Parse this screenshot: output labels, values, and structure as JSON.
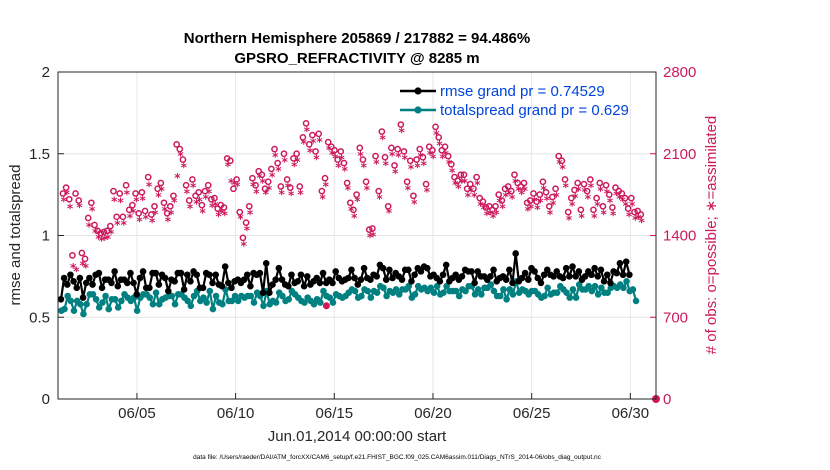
{
  "figure": {
    "title_line1": "Northern Hemisphere 205869 / 217882 = 94.486%",
    "title_line2": "GPSRO_REFRACTIVITY @ 8285 m",
    "footer_text": "data file: /Users/raeder/DAI/ATM_forcXX/CAM6_setup/f.e21.FHIST_BGC.f09_025.CAM6assim.011/Diags_NTrS_2014-06/obs_diag_output.nc"
  },
  "chart_data": {
    "type": "line",
    "title": "Northern Hemisphere 205869 / 217882 = 94.486%",
    "subtitle": "GPSRO_REFRACTIVITY @ 8285 m",
    "xlabel": "Jun.01,2014 00:00:00 start",
    "ylabel": "rmse and totalspread",
    "y2label": "# of obs: o=possible; ∗=assimilated",
    "xlim": [
      1,
      31.3
    ],
    "ylim": [
      0,
      2
    ],
    "y2lim": [
      0,
      2800
    ],
    "x_ticks": [
      5,
      10,
      15,
      20,
      25,
      30
    ],
    "x_tick_labels": [
      "06/05",
      "06/10",
      "06/15",
      "06/20",
      "06/25",
      "06/30"
    ],
    "y_ticks": [
      0,
      0.5,
      1,
      1.5,
      2
    ],
    "y_tick_labels": [
      "0",
      "0.5",
      "1",
      "1.5",
      "2"
    ],
    "y2_ticks": [
      0,
      700,
      1400,
      2100,
      2800
    ],
    "y2_tick_labels": [
      "0",
      "700",
      "1400",
      "2100",
      "2800"
    ],
    "grid": true,
    "legend_position": "top-right",
    "colors": {
      "rmse": "#000000",
      "spread": "#008080",
      "obs": "#cc1a5c",
      "legend_text": "#0044dd"
    },
    "series": [
      {
        "name": "rmse grand pr = 0.74529",
        "axis": "left",
        "values": [
          0.61,
          0.74,
          0.7,
          0.76,
          0.72,
          0.68,
          0.74,
          0.62,
          0.71,
          0.74,
          0.7,
          0.76,
          0.77,
          0.68,
          0.73,
          0.73,
          0.71,
          0.78,
          0.69,
          0.73,
          0.73,
          0.71,
          0.77,
          0.71,
          0.64,
          0.74,
          0.78,
          0.68,
          0.68,
          0.77,
          0.77,
          0.7,
          0.76,
          0.74,
          0.66,
          0.73,
          0.72,
          0.77,
          0.77,
          0.67,
          0.76,
          0.72,
          0.78,
          0.76,
          0.68,
          0.68,
          0.77,
          0.76,
          0.71,
          0.76,
          0.7,
          0.69,
          0.81,
          0.71,
          0.68,
          0.72,
          0.73,
          0.71,
          0.73,
          0.76,
          0.69,
          0.77,
          0.76,
          0.77,
          0.65,
          0.83,
          0.65,
          0.7,
          0.73,
          0.8,
          0.73,
          0.7,
          0.69,
          0.76,
          0.71,
          0.72,
          0.76,
          0.69,
          0.75,
          0.7,
          0.72,
          0.74,
          0.71,
          0.77,
          0.71,
          0.73,
          0.71,
          0.78,
          0.74,
          0.72,
          0.73,
          0.74,
          0.79,
          0.74,
          0.7,
          0.73,
          0.8,
          0.74,
          0.73,
          0.76,
          0.75,
          0.82,
          0.8,
          0.73,
          0.79,
          0.74,
          0.77,
          0.75,
          0.73,
          0.79,
          0.79,
          0.72,
          0.76,
          0.8,
          0.78,
          0.81,
          0.8,
          0.75,
          0.76,
          0.74,
          0.72,
          0.76,
          0.82,
          0.72,
          0.74,
          0.76,
          0.73,
          0.75,
          0.79,
          0.78,
          0.78,
          0.71,
          0.78,
          0.75,
          0.75,
          0.73,
          0.75,
          0.79,
          0.72,
          0.74,
          0.75,
          0.73,
          0.79,
          0.71,
          0.89,
          0.72,
          0.74,
          0.77,
          0.73,
          0.8,
          0.78,
          0.74,
          0.71,
          0.76,
          0.79,
          0.76,
          0.75,
          0.78,
          0.75,
          0.74,
          0.8,
          0.75,
          0.81,
          0.75,
          0.78,
          0.73,
          0.75,
          0.78,
          0.76,
          0.8,
          0.75,
          0.79,
          0.72,
          0.76,
          0.71,
          0.78,
          0.77,
          0.83,
          0.76,
          0.84,
          0.76
        ]
      },
      {
        "name": "totalspread grand pr = 0.629",
        "axis": "left",
        "values": [
          0.54,
          0.55,
          0.63,
          0.6,
          0.54,
          0.6,
          0.58,
          0.52,
          0.58,
          0.64,
          0.64,
          0.61,
          0.56,
          0.59,
          0.63,
          0.55,
          0.61,
          0.61,
          0.56,
          0.6,
          0.64,
          0.62,
          0.6,
          0.62,
          0.54,
          0.62,
          0.64,
          0.64,
          0.62,
          0.58,
          0.65,
          0.58,
          0.61,
          0.62,
          0.63,
          0.63,
          0.58,
          0.64,
          0.64,
          0.62,
          0.6,
          0.57,
          0.63,
          0.66,
          0.6,
          0.62,
          0.59,
          0.66,
          0.55,
          0.63,
          0.59,
          0.58,
          0.67,
          0.6,
          0.6,
          0.63,
          0.6,
          0.63,
          0.62,
          0.63,
          0.63,
          0.59,
          0.65,
          0.63,
          0.57,
          0.66,
          0.58,
          0.6,
          0.59,
          0.65,
          0.63,
          0.6,
          0.61,
          0.66,
          0.64,
          0.62,
          0.6,
          0.59,
          0.62,
          0.6,
          0.58,
          0.61,
          0.59,
          0.66,
          0.63,
          0.62,
          0.59,
          0.64,
          0.63,
          0.62,
          0.63,
          0.65,
          0.67,
          0.66,
          0.62,
          0.63,
          0.67,
          0.66,
          0.62,
          0.66,
          0.65,
          0.69,
          0.68,
          0.63,
          0.66,
          0.65,
          0.67,
          0.64,
          0.67,
          0.67,
          0.69,
          0.62,
          0.64,
          0.69,
          0.67,
          0.68,
          0.66,
          0.68,
          0.65,
          0.69,
          0.64,
          0.65,
          0.69,
          0.66,
          0.66,
          0.66,
          0.63,
          0.67,
          0.66,
          0.69,
          0.69,
          0.64,
          0.67,
          0.64,
          0.68,
          0.68,
          0.7,
          0.66,
          0.63,
          0.63,
          0.67,
          0.61,
          0.67,
          0.64,
          0.72,
          0.65,
          0.67,
          0.66,
          0.64,
          0.66,
          0.66,
          0.64,
          0.62,
          0.63,
          0.68,
          0.64,
          0.65,
          0.65,
          0.69,
          0.67,
          0.65,
          0.62,
          0.67,
          0.62,
          0.7,
          0.67,
          0.67,
          0.69,
          0.66,
          0.69,
          0.64,
          0.68,
          0.65,
          0.65,
          0.68,
          0.69,
          0.68,
          0.7,
          0.68,
          0.72,
          0.66,
          0.67,
          0.6
        ]
      },
      {
        "name": "possible obs (o)",
        "axis": "right",
        "values": [
          1760,
          1810,
          1710,
          1230,
          1760,
          1700,
          1250,
          1200,
          1550,
          1680,
          1490,
          1440,
          1420,
          1430,
          1440,
          1480,
          1780,
          1560,
          1760,
          1560,
          1830,
          1620,
          1660,
          1760,
          1590,
          1770,
          1610,
          1900,
          1580,
          1650,
          1800,
          1850,
          1680,
          1590,
          1650,
          1740,
          2180,
          2140,
          2050,
          1830,
          1700,
          1880,
          1740,
          1770,
          1660,
          1780,
          1830,
          1710,
          1720,
          1630,
          1660,
          1640,
          2060,
          2040,
          1800,
          1880,
          1600,
          1380,
          1510,
          1650,
          1890,
          1830,
          1950,
          1920,
          1800,
          1860,
          1970,
          2140,
          2020,
          1820,
          2100,
          1880,
          1810,
          2060,
          2100,
          1820,
          2240,
          2360,
          2180,
          2260,
          2120,
          2270,
          1780,
          1890,
          2200,
          2160,
          2130,
          2050,
          2120,
          2020,
          1850,
          1680,
          1620,
          1750,
          2150,
          2050,
          1860,
          1450,
          1460,
          2080,
          1780,
          2290,
          2070,
          1650,
          2150,
          2000,
          2140,
          2350,
          2120,
          1860,
          2040,
          1740,
          2050,
          2140,
          2070,
          1840,
          2160,
          2130,
          2330,
          2240,
          2130,
          2160,
          2080,
          2010,
          1900,
          1870,
          1920,
          1920,
          1800,
          1840,
          1800,
          1900,
          1720,
          1690,
          1640,
          1650,
          1620,
          1650,
          1750,
          1700,
          1800,
          1820,
          1780,
          1920,
          1850,
          1820,
          1850,
          1680,
          1700,
          1760,
          1690,
          1750,
          1860,
          1770,
          1650,
          1730,
          1800,
          2080,
          2040,
          1880,
          1600,
          1720,
          1790,
          1850,
          1620,
          1840,
          1780,
          1880,
          1620,
          1720,
          1850,
          1650,
          1830,
          1750,
          1640,
          1810,
          1780,
          1760,
          1720,
          1630,
          1720,
          1600,
          1610,
          1580
        ]
      },
      {
        "name": "assimilated obs (∗)",
        "axis": "right",
        "values": [
          1700,
          1760,
          1640,
          1130,
          1100,
          1650,
          1150,
          1130,
          1480,
          1620,
          1430,
          1380,
          1360,
          1370,
          1380,
          1420,
          1700,
          1500,
          1690,
          1500,
          1760,
          1560,
          1600,
          1700,
          1530,
          1710,
          1550,
          1830,
          1520,
          1590,
          1740,
          1790,
          1620,
          1530,
          1590,
          1690,
          1900,
          2090,
          1990,
          1770,
          1640,
          1820,
          1680,
          1700,
          1600,
          1720,
          1770,
          1650,
          1660,
          1570,
          1600,
          1580,
          2000,
          1860,
          1840,
          1830,
          1550,
          1320,
          1450,
          1590,
          1830,
          1770,
          1900,
          1860,
          1760,
          1800,
          1910,
          2080,
          1960,
          1760,
          2040,
          1820,
          1750,
          2000,
          2040,
          1760,
          2190,
          2300,
          2120,
          2200,
          2060,
          2210,
          1720,
          1830,
          2140,
          2100,
          2070,
          1990,
          2060,
          1960,
          1800,
          1620,
          1560,
          1700,
          2090,
          1990,
          1800,
          1390,
          1400,
          2020,
          1720,
          2230,
          2010,
          1600,
          2090,
          1940,
          2080,
          2290,
          2060,
          1800,
          1980,
          1680,
          1990,
          2080,
          2010,
          1780,
          2100,
          2070,
          2270,
          2180,
          2070,
          2100,
          2020,
          1950,
          1840,
          1810,
          1860,
          1860,
          1740,
          1780,
          1740,
          1840,
          1660,
          1630,
          1580,
          1590,
          1560,
          1590,
          1690,
          1640,
          1740,
          1760,
          1720,
          1860,
          1790,
          1760,
          1790,
          1620,
          1640,
          1700,
          1630,
          1690,
          1800,
          1710,
          1590,
          1670,
          1740,
          2020,
          1980,
          1820,
          1540,
          1660,
          1730,
          1790,
          1560,
          1780,
          1720,
          1820,
          1560,
          1660,
          1790,
          1590,
          1770,
          1690,
          1580,
          1750,
          1720,
          1700,
          1660,
          1570,
          1660,
          1540,
          1550,
          1520
        ]
      }
    ]
  }
}
